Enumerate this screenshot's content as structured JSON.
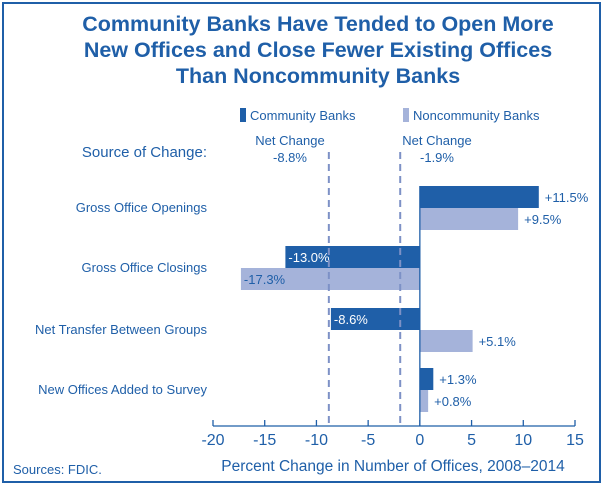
{
  "chart_data": {
    "type": "bar",
    "orientation": "horizontal",
    "title_lines": [
      "Community Banks Have Tended to Open More",
      "New Offices and Close Fewer Existing Offices",
      "Than Noncommunity Banks"
    ],
    "category_header": "Source of Change:",
    "categories": [
      "Gross Office Openings",
      "Gross Office Closings",
      "Net Transfer Between Groups",
      "New Offices Added to Survey"
    ],
    "series": [
      {
        "name": "Community Banks",
        "color": "#1f5fa8",
        "values": [
          11.5,
          -13.0,
          -8.6,
          1.3
        ],
        "labels": [
          "+11.5%",
          "-13.0%",
          "-8.6%",
          "+1.3%"
        ]
      },
      {
        "name": "Noncommunity Banks",
        "color": "#a5b3da",
        "values": [
          9.5,
          -17.3,
          5.1,
          0.8
        ],
        "labels": [
          "+9.5%",
          "-17.3%",
          "+5.1%",
          "+0.8%"
        ]
      }
    ],
    "reference_lines": [
      {
        "label": "Net Change",
        "value_label": "-8.8%",
        "value": -8.8
      },
      {
        "label": "Net Change",
        "value_label": "-1.9%",
        "value": -1.9
      }
    ],
    "xlim": [
      -20,
      15
    ],
    "xticks": [
      -20,
      -15,
      -10,
      -5,
      0,
      5,
      10,
      15
    ],
    "xlabel": "Percent Change in Number of Offices, 2008–2014",
    "legend_position": "top-right",
    "grid": false
  },
  "source": "Sources: FDIC."
}
